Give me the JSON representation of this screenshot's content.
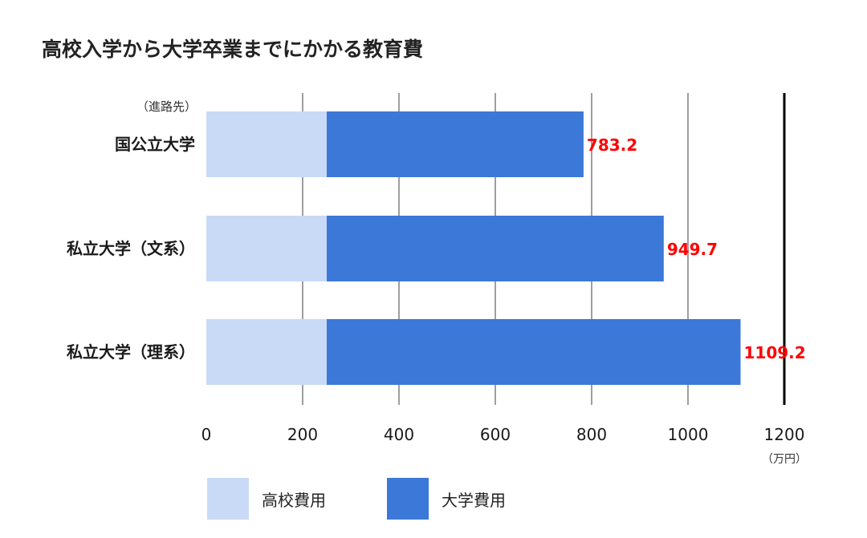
{
  "title": "高校入学から大学卒業までにかかる教育費",
  "chart_data": {
    "type": "bar",
    "orientation": "horizontal",
    "stacked": true,
    "category_header": "（進路先）",
    "categories": [
      "国公立大学",
      "私立大学（文系）",
      "私立大学（理系）"
    ],
    "series": [
      {
        "name": "高校費用",
        "values": [
          250,
          250,
          250
        ],
        "color": "#c9daf6"
      },
      {
        "name": "大学費用",
        "values": [
          533.2,
          699.7,
          859.2
        ],
        "color": "#3c78d8"
      }
    ],
    "totals": [
      "783.2",
      "949.7",
      "1109.2"
    ],
    "total_label_color": "#ff0000",
    "xlim": [
      0,
      1200
    ],
    "xticks": [
      "0",
      "200",
      "400",
      "600",
      "800",
      "1000",
      "1200"
    ],
    "xunit": "（万円）",
    "grid": true,
    "legend_position": "bottom"
  }
}
